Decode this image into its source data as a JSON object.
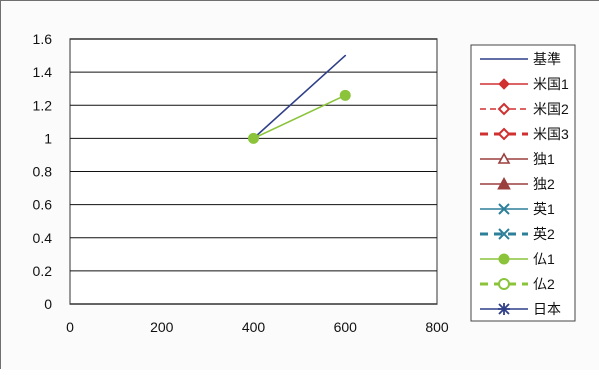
{
  "chart_data": {
    "type": "line",
    "title": "",
    "xlabel": "",
    "ylabel": "",
    "xlim": [
      0,
      800
    ],
    "ylim": [
      0,
      1.6
    ],
    "x_ticks": [
      "0",
      "200",
      "400",
      "600",
      "800"
    ],
    "y_ticks": [
      "0",
      "0.2",
      "0.4",
      "0.6",
      "0.8",
      "1",
      "1.2",
      "1.4",
      "1.6"
    ],
    "grid": "horizontal",
    "legend_position": "right",
    "series": [
      {
        "name": "基準",
        "color": "#2f3f88",
        "dash": "solid",
        "marker": "none",
        "points": [
          {
            "x": 400,
            "y": 1.0
          },
          {
            "x": 600,
            "y": 1.5
          }
        ]
      },
      {
        "name": "米国1",
        "color": "#d03030",
        "dash": "solid",
        "marker": "diamond-filled",
        "points": []
      },
      {
        "name": "米国2",
        "color": "#d03030",
        "dash": "dashed",
        "marker": "diamond-open",
        "points": []
      },
      {
        "name": "米国3",
        "color": "#d03030",
        "dash": "dashed-thick",
        "marker": "diamond-open",
        "points": []
      },
      {
        "name": "独1",
        "color": "#9b3f3f",
        "dash": "solid",
        "marker": "triangle-open",
        "points": []
      },
      {
        "name": "独2",
        "color": "#9b3f3f",
        "dash": "solid",
        "marker": "triangle-filled",
        "points": []
      },
      {
        "name": "英1",
        "color": "#2d7f9a",
        "dash": "solid",
        "marker": "x",
        "points": []
      },
      {
        "name": "英2",
        "color": "#2d7f9a",
        "dash": "dashed-thick",
        "marker": "x",
        "points": []
      },
      {
        "name": "仏1",
        "color": "#8bc43b",
        "dash": "solid",
        "marker": "circle-filled",
        "points": [
          {
            "x": 400,
            "y": 1.0
          },
          {
            "x": 600,
            "y": 1.26
          }
        ]
      },
      {
        "name": "仏2",
        "color": "#8bc43b",
        "dash": "dashed-thick",
        "marker": "circle-open",
        "points": []
      },
      {
        "name": "日本",
        "color": "#2f3f88",
        "dash": "solid",
        "marker": "star",
        "points": []
      }
    ]
  }
}
